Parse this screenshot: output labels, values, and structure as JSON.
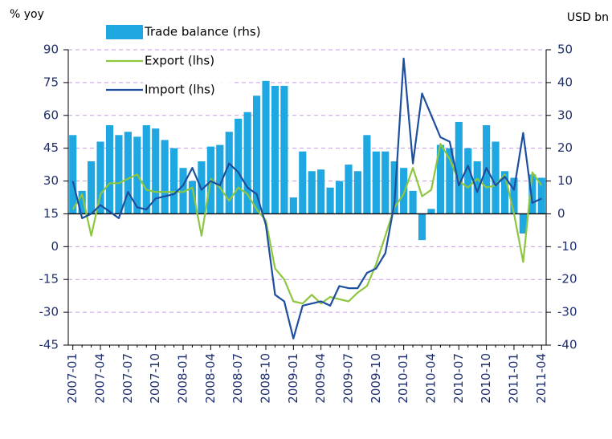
{
  "chart_data": {
    "type": "bar_line",
    "y_label": "% yoy",
    "y2_label": "USD bn",
    "categories": [
      "2007-01",
      null,
      null,
      "2007-04",
      null,
      null,
      "2007-07",
      null,
      null,
      "2007-10",
      null,
      null,
      "2008-01",
      null,
      null,
      "2008-04",
      null,
      null,
      "2008-07",
      null,
      null,
      "2008-10",
      null,
      null,
      "2009-01",
      null,
      null,
      "2009-04",
      null,
      null,
      "2009-07",
      null,
      null,
      "2009-10",
      null,
      null,
      "2010-01",
      null,
      null,
      "2010-04",
      null,
      null,
      "2010-07",
      null,
      null,
      "2010-10",
      null,
      null,
      "2011-01",
      null,
      null,
      "2011-04"
    ],
    "series": [
      {
        "name": "Trade balance (rhs)",
        "type": "bar",
        "axis": "y2",
        "color": "#1ea7e1",
        "values": [
          24,
          7,
          16,
          22,
          27,
          24,
          25,
          23.5,
          27,
          26,
          22.5,
          20,
          14,
          10,
          16,
          20.5,
          21,
          25,
          29,
          31,
          36,
          40.5,
          39,
          39,
          5,
          19,
          13,
          13.5,
          8,
          10,
          15,
          13,
          24,
          19,
          19,
          16,
          14,
          7,
          -8,
          1.5,
          21,
          20,
          28,
          20,
          16,
          27,
          22,
          13,
          11,
          -6,
          12,
          11
        ]
      },
      {
        "name": "Export (lhs)",
        "type": "line",
        "color": "#8dc63f",
        "values": [
          17,
          24,
          5,
          24,
          29,
          29,
          31,
          33,
          26,
          25,
          25,
          25,
          25,
          27,
          5,
          31,
          27,
          21,
          27,
          24,
          17,
          12,
          -10,
          -15,
          -25,
          -26,
          -22,
          -26,
          -23,
          -24,
          -25,
          -21,
          -18,
          -8,
          5,
          18,
          24,
          36,
          23,
          26,
          47,
          40,
          30,
          27,
          31,
          27,
          28,
          33,
          15,
          -7,
          34,
          28
        ]
      },
      {
        "name": "Import (lhs)",
        "type": "line",
        "color": "#1d4f9e",
        "values": [
          30,
          13,
          15,
          19,
          16,
          13,
          25,
          18,
          17,
          22,
          23,
          24,
          28,
          36,
          26,
          30,
          28,
          38,
          34,
          27,
          24,
          10,
          -22,
          -25,
          -42,
          -27,
          -26,
          -25,
          -27,
          -18,
          -19,
          -19,
          -12,
          -10,
          -3,
          20,
          86,
          38,
          70,
          60,
          50,
          48,
          28,
          37,
          25,
          36,
          28,
          32,
          26,
          52,
          20,
          22
        ]
      }
    ],
    "ylim": [
      -45,
      90
    ],
    "yticks": [
      -45,
      -30,
      -15,
      0,
      15,
      30,
      45,
      60,
      75,
      90
    ],
    "y2lim": [
      -40,
      50
    ],
    "y2ticks": [
      -40,
      -30,
      -20,
      -10,
      0,
      10,
      20,
      30,
      40,
      50
    ],
    "grid": true
  }
}
